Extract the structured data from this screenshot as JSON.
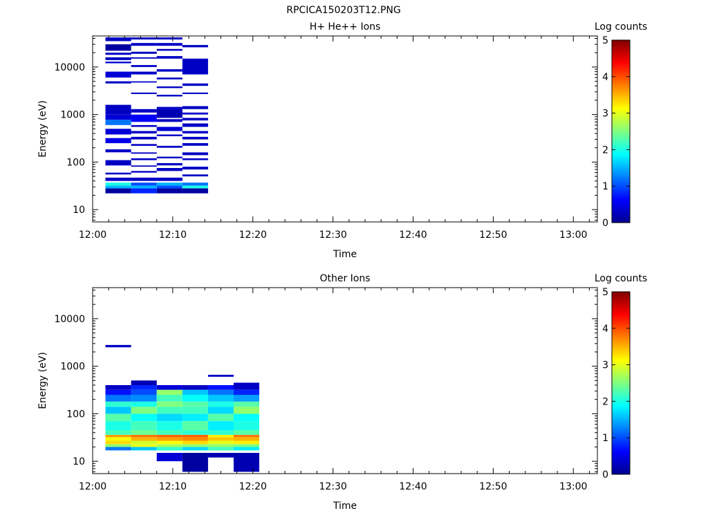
{
  "figure_title": "RPCICA150203T12.PNG",
  "colormap": [
    "#00008f",
    "#0000ff",
    "#0080ff",
    "#00ffff",
    "#80ff80",
    "#ffff00",
    "#ff8000",
    "#ff0000",
    "#800000"
  ],
  "chart_data": [
    {
      "type": "heatmap",
      "title": "H+ He++ Ions",
      "xlabel": "Time",
      "ylabel": "Energy (eV)",
      "xlim": [
        "12:00",
        "13:03"
      ],
      "ylim": [
        5.5,
        45000
      ],
      "yscale": "log",
      "xticks": [
        "12:00",
        "12:10",
        "12:20",
        "12:30",
        "12:40",
        "12:50",
        "13:00"
      ],
      "yticks": [
        "10",
        "100",
        "1000",
        "10000"
      ],
      "colorbar": {
        "label": "Log counts",
        "range": [
          0,
          5
        ],
        "ticks": [
          "0",
          "1",
          "2",
          "3",
          "4",
          "5"
        ]
      },
      "time_bins": [
        [
          "12:01.6",
          "12:04.8"
        ],
        [
          "12:04.8",
          "12:08.0"
        ],
        [
          "12:08.0",
          "12:11.2"
        ],
        [
          "12:11.2",
          "12:14.4"
        ],
        [
          "12:14.4",
          "12:17.6"
        ],
        [
          "12:17.6",
          "12:20.8"
        ]
      ],
      "cells": [
        [
          0,
          22,
          28,
          0.1
        ],
        [
          0,
          28,
          32,
          1.5
        ],
        [
          0,
          32,
          37,
          2.0
        ],
        [
          0,
          40,
          47,
          0.3
        ],
        [
          0,
          55,
          60,
          0.3
        ],
        [
          0,
          85,
          110,
          0.3
        ],
        [
          0,
          160,
          185,
          0.3
        ],
        [
          0,
          250,
          320,
          0.5
        ],
        [
          0,
          380,
          500,
          0.4
        ],
        [
          0,
          600,
          780,
          1.2
        ],
        [
          0,
          780,
          1000,
          0.4
        ],
        [
          0,
          1000,
          1600,
          0.3
        ],
        [
          0,
          4500,
          5000,
          0.3
        ],
        [
          0,
          6000,
          8000,
          0.4
        ],
        [
          0,
          12000,
          13000,
          0.4
        ],
        [
          0,
          14000,
          16000,
          0.3
        ],
        [
          0,
          18000,
          20000,
          0.3
        ],
        [
          0,
          22000,
          30000,
          0.1
        ],
        [
          0,
          35000,
          42000,
          0.3
        ],
        [
          1,
          22,
          28,
          0.8
        ],
        [
          1,
          28,
          32,
          1.5
        ],
        [
          1,
          32,
          37,
          1.0
        ],
        [
          1,
          40,
          47,
          0.3
        ],
        [
          1,
          60,
          65,
          0.3
        ],
        [
          1,
          80,
          85,
          0.3
        ],
        [
          1,
          110,
          120,
          0.3
        ],
        [
          1,
          150,
          160,
          0.3
        ],
        [
          1,
          220,
          240,
          0.3
        ],
        [
          1,
          300,
          340,
          0.3
        ],
        [
          1,
          400,
          450,
          0.3
        ],
        [
          1,
          550,
          600,
          0.3
        ],
        [
          1,
          700,
          1000,
          0.6
        ],
        [
          1,
          1100,
          1300,
          0.3
        ],
        [
          1,
          2700,
          2900,
          0.3
        ],
        [
          1,
          4700,
          5000,
          0.3
        ],
        [
          1,
          7000,
          8000,
          0.3
        ],
        [
          1,
          10000,
          11000,
          0.3
        ],
        [
          1,
          15000,
          16000,
          0.3
        ],
        [
          1,
          19000,
          21000,
          0.3
        ],
        [
          1,
          28000,
          32000,
          0.3
        ],
        [
          1,
          38000,
          42000,
          0.3
        ],
        [
          2,
          22,
          28,
          0.1
        ],
        [
          2,
          28,
          32,
          1.0
        ],
        [
          2,
          32,
          37,
          1.5
        ],
        [
          2,
          40,
          47,
          0.3
        ],
        [
          2,
          65,
          75,
          0.3
        ],
        [
          2,
          85,
          95,
          0.3
        ],
        [
          2,
          120,
          130,
          0.3
        ],
        [
          2,
          200,
          220,
          0.3
        ],
        [
          2,
          350,
          380,
          0.3
        ],
        [
          2,
          450,
          550,
          0.4
        ],
        [
          2,
          700,
          800,
          0.3
        ],
        [
          2,
          850,
          1300,
          0.2
        ],
        [
          2,
          1300,
          1450,
          0.3
        ],
        [
          2,
          2400,
          2600,
          0.3
        ],
        [
          2,
          3600,
          3900,
          0.3
        ],
        [
          2,
          5500,
          6000,
          0.3
        ],
        [
          2,
          8000,
          9000,
          0.3
        ],
        [
          2,
          15000,
          17000,
          0.3
        ],
        [
          2,
          22000,
          24000,
          0.3
        ],
        [
          2,
          28000,
          32000,
          0.3
        ],
        [
          2,
          38000,
          42000,
          0.3
        ],
        [
          3,
          22,
          28,
          0.1
        ],
        [
          3,
          28,
          32,
          2.0
        ],
        [
          3,
          32,
          37,
          1.2
        ],
        [
          3,
          50,
          55,
          0.3
        ],
        [
          3,
          70,
          80,
          0.3
        ],
        [
          3,
          110,
          120,
          0.3
        ],
        [
          3,
          140,
          160,
          0.3
        ],
        [
          3,
          220,
          250,
          0.3
        ],
        [
          3,
          300,
          340,
          0.3
        ],
        [
          3,
          400,
          450,
          0.3
        ],
        [
          3,
          550,
          650,
          0.3
        ],
        [
          3,
          750,
          850,
          0.3
        ],
        [
          3,
          1000,
          1100,
          0.3
        ],
        [
          3,
          1300,
          1500,
          0.3
        ],
        [
          3,
          2700,
          2900,
          0.3
        ],
        [
          3,
          4000,
          4500,
          0.3
        ],
        [
          3,
          7000,
          15000,
          0.3
        ],
        [
          3,
          26000,
          29000,
          0.3
        ]
      ]
    },
    {
      "type": "heatmap",
      "title": "Other Ions",
      "xlabel": "Time",
      "ylabel": "Energy (eV)",
      "xlim": [
        "12:00",
        "13:03"
      ],
      "ylim": [
        5.5,
        45000
      ],
      "yscale": "log",
      "xticks": [
        "12:00",
        "12:10",
        "12:20",
        "12:30",
        "12:40",
        "12:50",
        "13:00"
      ],
      "yticks": [
        "10",
        "100",
        "1000",
        "10000"
      ],
      "colorbar": {
        "label": "Log counts",
        "range": [
          0,
          5
        ],
        "ticks": [
          "0",
          "1",
          "2",
          "3",
          "4",
          "5"
        ]
      },
      "time_bins": [
        [
          "12:01.6",
          "12:04.8"
        ],
        [
          "12:04.8",
          "12:08.0"
        ],
        [
          "12:08.0",
          "12:11.2"
        ],
        [
          "12:11.2",
          "12:14.4"
        ],
        [
          "12:14.4",
          "12:17.6"
        ],
        [
          "12:17.6",
          "12:20.8"
        ]
      ],
      "cells": [
        [
          0,
          17,
          20,
          1.2
        ],
        [
          0,
          20,
          23,
          2.6
        ],
        [
          0,
          23,
          27,
          3.3
        ],
        [
          0,
          27,
          32,
          3.1
        ],
        [
          0,
          32,
          36,
          3.6
        ],
        [
          0,
          36,
          45,
          2.2
        ],
        [
          0,
          45,
          70,
          2.0
        ],
        [
          0,
          70,
          100,
          2.3
        ],
        [
          0,
          100,
          140,
          1.6
        ],
        [
          0,
          140,
          180,
          2.1
        ],
        [
          0,
          180,
          250,
          1.2
        ],
        [
          0,
          250,
          320,
          0.7
        ],
        [
          0,
          320,
          400,
          0.3
        ],
        [
          0,
          2500,
          2800,
          0.3
        ],
        [
          1,
          17,
          20,
          1.6
        ],
        [
          1,
          20,
          23,
          3.0
        ],
        [
          1,
          23,
          27,
          2.9
        ],
        [
          1,
          27,
          32,
          3.5
        ],
        [
          1,
          32,
          36,
          3.8
        ],
        [
          1,
          36,
          45,
          2.4
        ],
        [
          1,
          45,
          70,
          2.2
        ],
        [
          1,
          70,
          100,
          1.9
        ],
        [
          1,
          100,
          140,
          2.5
        ],
        [
          1,
          140,
          180,
          2.0
        ],
        [
          1,
          180,
          250,
          1.3
        ],
        [
          1,
          250,
          320,
          1.0
        ],
        [
          1,
          320,
          400,
          0.8
        ],
        [
          1,
          400,
          500,
          0.2
        ],
        [
          2,
          10,
          15,
          0.4
        ],
        [
          2,
          17,
          20,
          2.1
        ],
        [
          2,
          20,
          23,
          2.7
        ],
        [
          2,
          23,
          27,
          3.1
        ],
        [
          2,
          27,
          32,
          3.6
        ],
        [
          2,
          32,
          36,
          3.9
        ],
        [
          2,
          36,
          45,
          2.2
        ],
        [
          2,
          45,
          70,
          2.0
        ],
        [
          2,
          70,
          100,
          1.7
        ],
        [
          2,
          100,
          140,
          2.2
        ],
        [
          2,
          140,
          180,
          2.5
        ],
        [
          2,
          180,
          250,
          2.2
        ],
        [
          2,
          250,
          320,
          2.6
        ],
        [
          2,
          320,
          400,
          0.4
        ],
        [
          3,
          6,
          15,
          0.1
        ],
        [
          3,
          17,
          20,
          1.7
        ],
        [
          3,
          20,
          23,
          2.6
        ],
        [
          3,
          23,
          27,
          3.3
        ],
        [
          3,
          27,
          32,
          3.7
        ],
        [
          3,
          32,
          36,
          3.9
        ],
        [
          3,
          36,
          45,
          2.1
        ],
        [
          3,
          45,
          70,
          2.3
        ],
        [
          3,
          70,
          100,
          1.8
        ],
        [
          3,
          100,
          140,
          2.2
        ],
        [
          3,
          140,
          180,
          2.3
        ],
        [
          3,
          180,
          250,
          1.9
        ],
        [
          3,
          250,
          320,
          1.6
        ],
        [
          3,
          320,
          400,
          0.3
        ],
        [
          4,
          12,
          15,
          0.2
        ],
        [
          4,
          17,
          20,
          2.2
        ],
        [
          4,
          20,
          23,
          2.6
        ],
        [
          4,
          23,
          27,
          3.0
        ],
        [
          4,
          27,
          32,
          3.4
        ],
        [
          4,
          32,
          36,
          3.2
        ],
        [
          4,
          36,
          45,
          2.1
        ],
        [
          4,
          45,
          70,
          1.8
        ],
        [
          4,
          70,
          100,
          2.3
        ],
        [
          4,
          100,
          140,
          1.7
        ],
        [
          4,
          140,
          180,
          2.0
        ],
        [
          4,
          180,
          250,
          1.6
        ],
        [
          4,
          250,
          320,
          1.2
        ],
        [
          4,
          320,
          400,
          0.7
        ],
        [
          4,
          600,
          660,
          0.3
        ],
        [
          5,
          6,
          15,
          0.2
        ],
        [
          5,
          17,
          20,
          1.8
        ],
        [
          5,
          20,
          23,
          2.5
        ],
        [
          5,
          23,
          27,
          3.2
        ],
        [
          5,
          27,
          32,
          3.5
        ],
        [
          5,
          32,
          36,
          3.8
        ],
        [
          5,
          36,
          45,
          2.3
        ],
        [
          5,
          45,
          70,
          2.0
        ],
        [
          5,
          70,
          100,
          1.9
        ],
        [
          5,
          100,
          140,
          2.6
        ],
        [
          5,
          140,
          180,
          2.3
        ],
        [
          5,
          180,
          250,
          1.4
        ],
        [
          5,
          250,
          320,
          0.8
        ],
        [
          5,
          320,
          450,
          0.3
        ]
      ]
    }
  ]
}
